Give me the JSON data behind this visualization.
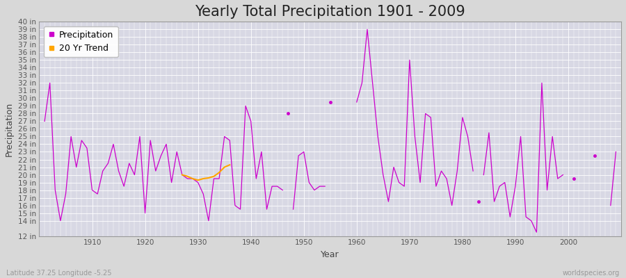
{
  "title": "Yearly Total Precipitation 1901 - 2009",
  "xlabel": "Year",
  "ylabel": "Precipitation",
  "bg_color": "#d8d8d8",
  "plot_bg_color": "#d8d8e4",
  "precip_color": "#cc00cc",
  "trend_color": "#ffa500",
  "years": [
    1901,
    1902,
    1903,
    1904,
    1905,
    1906,
    1907,
    1908,
    1909,
    1910,
    1911,
    1912,
    1913,
    1914,
    1915,
    1916,
    1917,
    1918,
    1919,
    1920,
    1921,
    1922,
    1923,
    1924,
    1925,
    1926,
    1927,
    1928,
    1929,
    1930,
    1931,
    1932,
    1933,
    1934,
    1935,
    1936,
    1937,
    1938,
    1939,
    1940,
    1941,
    1942,
    1943,
    1944,
    1945,
    1946,
    1947,
    1948,
    1949,
    1950,
    1951,
    1952,
    1953,
    1954,
    1955,
    1956,
    1957,
    1958,
    1959,
    1960,
    1961,
    1962,
    1963,
    1964,
    1965,
    1966,
    1967,
    1968,
    1969,
    1970,
    1971,
    1972,
    1973,
    1974,
    1975,
    1976,
    1977,
    1978,
    1979,
    1980,
    1981,
    1982,
    1983,
    1984,
    1985,
    1986,
    1987,
    1988,
    1989,
    1990,
    1991,
    1992,
    1993,
    1994,
    1995,
    1996,
    1997,
    1998,
    1999,
    2000,
    2001,
    2002,
    2003,
    2004,
    2005,
    2006,
    2007,
    2008,
    2009
  ],
  "precip": [
    27.0,
    32.0,
    18.0,
    14.0,
    17.5,
    25.0,
    21.0,
    24.5,
    23.5,
    18.0,
    17.5,
    20.5,
    21.5,
    24.0,
    20.5,
    18.5,
    21.5,
    20.0,
    25.0,
    15.0,
    24.5,
    20.5,
    22.5,
    24.0,
    19.0,
    23.0,
    20.0,
    19.5,
    19.5,
    19.0,
    17.5,
    14.0,
    19.5,
    19.5,
    25.0,
    24.5,
    16.0,
    15.5,
    29.0,
    27.0,
    19.5,
    23.0,
    15.5,
    18.5,
    18.5,
    18.0,
    null,
    15.5,
    22.5,
    23.0,
    19.0,
    18.0,
    18.5,
    18.5,
    null,
    null,
    null,
    null,
    null,
    29.5,
    32.0,
    39.0,
    32.0,
    25.0,
    20.0,
    16.5,
    21.0,
    19.0,
    18.5,
    35.0,
    25.0,
    19.0,
    28.0,
    27.5,
    18.5,
    20.5,
    19.5,
    16.0,
    20.5,
    27.5,
    25.0,
    20.5,
    null,
    20.0,
    25.5,
    16.5,
    18.5,
    19.0,
    14.5,
    18.5,
    25.0,
    14.5,
    14.0,
    12.5,
    32.0,
    18.0,
    25.0,
    19.5,
    20.0,
    null,
    null,
    null,
    null,
    null,
    22.5,
    null,
    null,
    16.0,
    23.0
  ],
  "isolated_dots": [
    {
      "year": 1947,
      "value": 28.0
    },
    {
      "year": 1955,
      "value": 29.5
    },
    {
      "year": 1983,
      "value": 16.5
    },
    {
      "year": 2001,
      "value": 19.5
    }
  ],
  "trend_years": [
    1927,
    1928,
    1929,
    1930,
    1931,
    1932,
    1933,
    1934,
    1935,
    1936
  ],
  "trend_values": [
    20.0,
    19.8,
    19.5,
    19.3,
    19.5,
    19.6,
    19.8,
    20.3,
    21.0,
    21.3
  ],
  "yticks": [
    12,
    14,
    15,
    16,
    17,
    18,
    19,
    20,
    21,
    22,
    23,
    24,
    25,
    26,
    27,
    28,
    29,
    30,
    31,
    32,
    33,
    34,
    35,
    36,
    37,
    38,
    39,
    40
  ],
  "ytick_labels": [
    "12 in",
    "14 in",
    "15 in",
    "16 in",
    "17 in",
    "18 in",
    "19 in",
    "20 in",
    "21 in",
    "22 in",
    "23 in",
    "24 in",
    "25 in",
    "26 in",
    "27 in",
    "28 in",
    "29 in",
    "30 in",
    "31 in",
    "32 in",
    "33 in",
    "34 in",
    "35 in",
    "36 in",
    "37 in",
    "38 in",
    "39 in",
    "40 in"
  ],
  "ylim": [
    12,
    40
  ],
  "xlim": [
    1900,
    2010
  ],
  "xticks": [
    1910,
    1920,
    1930,
    1940,
    1950,
    1960,
    1970,
    1980,
    1990,
    2000
  ],
  "footer_left": "Latitude 37.25 Longitude -5.25",
  "footer_right": "worldspecies.org",
  "title_fontsize": 15,
  "label_fontsize": 9,
  "tick_fontsize": 7.5
}
